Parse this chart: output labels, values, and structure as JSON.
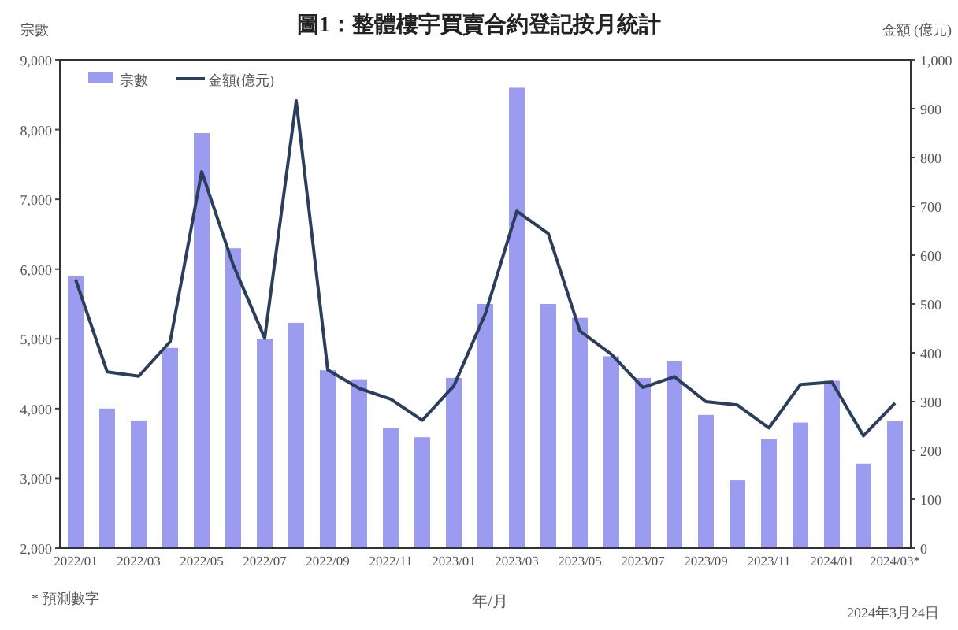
{
  "chart_data": {
    "type": "bar",
    "title": "圖1：整體樓宇買賣合約登記按月統計",
    "xlabel": "年/月",
    "ylabel": "宗數",
    "y2label": "金額 (億元)",
    "categories": [
      "2022/01",
      null,
      "2022/03",
      null,
      "2022/05",
      null,
      "2022/07",
      null,
      "2022/09",
      null,
      "2022/11",
      null,
      "2023/01",
      null,
      "2023/03",
      null,
      "2023/05",
      null,
      "2023/07",
      null,
      "2023/09",
      null,
      "2023/11",
      null,
      "2024/01",
      null,
      "2024/03*"
    ],
    "series": [
      {
        "name": "宗數",
        "color": "#9b9cf0",
        "values": [
          5900,
          4000,
          3830,
          4870,
          7950,
          6300,
          5000,
          5230,
          4550,
          4420,
          3720,
          3590,
          4440,
          5500,
          8600,
          5500,
          5300,
          4750,
          4440,
          4680,
          3910,
          2970,
          3560,
          3800,
          4400,
          3210,
          3820
        ]
      },
      {
        "name": "金額(億元)",
        "type": "line",
        "axis": "y2",
        "color": "#2b3f5c",
        "values": [
          550,
          361,
          352,
          423,
          771,
          580,
          430,
          916,
          365,
          327,
          305,
          262,
          332,
          480,
          690,
          644,
          445,
          397,
          329,
          351,
          300,
          293,
          246,
          335,
          340,
          230,
          297
        ]
      }
    ],
    "ylim": [
      2000,
      9000
    ],
    "yticks": [
      {
        "value": 2000,
        "label": "2,000"
      },
      {
        "value": 3000,
        "label": "3,000"
      },
      {
        "value": 4000,
        "label": "4,000"
      },
      {
        "value": 5000,
        "label": "5,000"
      },
      {
        "value": 6000,
        "label": "6,000"
      },
      {
        "value": 7000,
        "label": "7,000"
      },
      {
        "value": 8000,
        "label": "8,000"
      },
      {
        "value": 9000,
        "label": "9,000"
      }
    ],
    "y2lim": [
      0,
      1000
    ],
    "y2ticks": [
      0,
      100,
      200,
      300,
      400,
      500,
      600,
      700,
      800,
      900,
      {
        "value": 1000,
        "label": "1,000"
      }
    ],
    "legend": "top left",
    "annotations": [
      "* 預測數字",
      "2024年3月24日"
    ]
  }
}
